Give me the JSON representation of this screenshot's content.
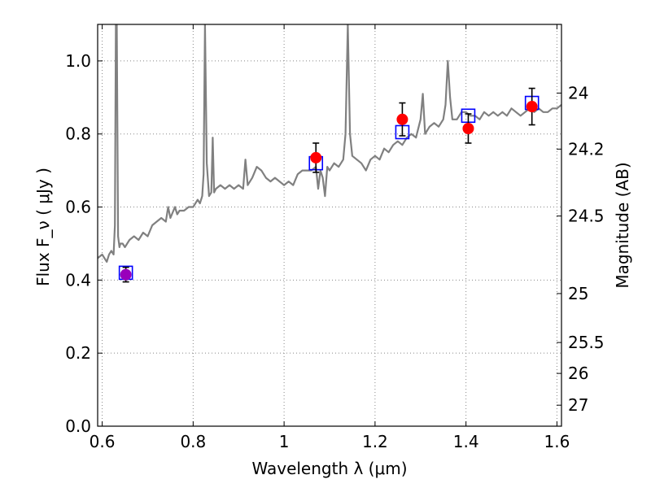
{
  "chart_data": {
    "type": "scatter",
    "title": "",
    "xlabel": "Wavelength  λ (μm)",
    "ylabel": "Flux  F_ν  ( μJy )",
    "ylabel_right": "Magnitude (AB)",
    "xlim": [
      0.59,
      1.61
    ],
    "ylim": [
      0.0,
      1.1
    ],
    "grid": true,
    "x_ticks": [
      0.6,
      0.8,
      1.0,
      1.2,
      1.4,
      1.6
    ],
    "x_tick_labels": [
      "0.6",
      "0.8",
      "1",
      "1.2",
      "1.4",
      "1.6"
    ],
    "y_ticks": [
      0.0,
      0.2,
      0.4,
      0.6,
      0.8,
      1.0
    ],
    "y_tick_labels": [
      "0.0",
      "0.2",
      "0.4",
      "0.6",
      "0.8",
      "1.0"
    ],
    "right_ticks": [
      {
        "label": "24",
        "flux": 0.912
      },
      {
        "label": "24.2",
        "flux": 0.7586
      },
      {
        "label": "24.5",
        "flux": 0.5754
      },
      {
        "label": "25",
        "flux": 0.3631
      },
      {
        "label": "25.5",
        "flux": 0.2291
      },
      {
        "label": "26",
        "flux": 0.1445
      },
      {
        "label": "27",
        "flux": 0.0575
      }
    ],
    "colors": {
      "model": "#808080",
      "observed": "#ff0000",
      "observed_first": "#9900bb",
      "model_photometry": "#0000ff",
      "errorbar": "#000000",
      "grid": "#888888"
    },
    "series": [
      {
        "kind": "line",
        "x": [
          0.59,
          0.6,
          0.61,
          0.615,
          0.62,
          0.625,
          0.628,
          0.63,
          0.632,
          0.635,
          0.638,
          0.64,
          0.645,
          0.65,
          0.66,
          0.67,
          0.68,
          0.69,
          0.7,
          0.71,
          0.72,
          0.73,
          0.74,
          0.745,
          0.75,
          0.76,
          0.765,
          0.77,
          0.78,
          0.79,
          0.8,
          0.81,
          0.815,
          0.82,
          0.823,
          0.826,
          0.83,
          0.835,
          0.84,
          0.843,
          0.846,
          0.85,
          0.86,
          0.87,
          0.88,
          0.89,
          0.9,
          0.91,
          0.915,
          0.92,
          0.93,
          0.94,
          0.95,
          0.96,
          0.97,
          0.98,
          0.99,
          1.0,
          1.01,
          1.02,
          1.03,
          1.04,
          1.05,
          1.06,
          1.07,
          1.075,
          1.08,
          1.085,
          1.09,
          1.095,
          1.1,
          1.11,
          1.12,
          1.13,
          1.135,
          1.14,
          1.145,
          1.15,
          1.16,
          1.17,
          1.18,
          1.19,
          1.2,
          1.21,
          1.22,
          1.23,
          1.24,
          1.25,
          1.26,
          1.27,
          1.28,
          1.29,
          1.3,
          1.305,
          1.31,
          1.32,
          1.33,
          1.34,
          1.35,
          1.355,
          1.36,
          1.365,
          1.37,
          1.38,
          1.39,
          1.4,
          1.41,
          1.42,
          1.43,
          1.44,
          1.45,
          1.46,
          1.47,
          1.48,
          1.49,
          1.5,
          1.51,
          1.52,
          1.53,
          1.54,
          1.55,
          1.56,
          1.57,
          1.58,
          1.59,
          1.6,
          1.61
        ],
        "y": [
          0.46,
          0.47,
          0.45,
          0.47,
          0.48,
          0.47,
          0.55,
          1.1,
          1.1,
          0.52,
          0.49,
          0.5,
          0.5,
          0.49,
          0.51,
          0.52,
          0.51,
          0.53,
          0.52,
          0.55,
          0.56,
          0.57,
          0.56,
          0.6,
          0.57,
          0.6,
          0.58,
          0.59,
          0.59,
          0.6,
          0.6,
          0.62,
          0.61,
          0.63,
          0.69,
          1.1,
          0.72,
          0.63,
          0.64,
          0.79,
          0.64,
          0.65,
          0.66,
          0.65,
          0.66,
          0.65,
          0.66,
          0.65,
          0.73,
          0.66,
          0.68,
          0.71,
          0.7,
          0.68,
          0.67,
          0.68,
          0.67,
          0.66,
          0.67,
          0.66,
          0.69,
          0.7,
          0.7,
          0.7,
          0.71,
          0.65,
          0.7,
          0.68,
          0.63,
          0.71,
          0.7,
          0.72,
          0.71,
          0.73,
          0.8,
          1.1,
          0.8,
          0.74,
          0.73,
          0.72,
          0.7,
          0.73,
          0.74,
          0.73,
          0.76,
          0.75,
          0.77,
          0.78,
          0.77,
          0.79,
          0.8,
          0.79,
          0.84,
          0.91,
          0.8,
          0.82,
          0.83,
          0.82,
          0.84,
          0.88,
          1.0,
          0.9,
          0.84,
          0.84,
          0.86,
          0.86,
          0.85,
          0.85,
          0.84,
          0.86,
          0.85,
          0.86,
          0.85,
          0.86,
          0.85,
          0.87,
          0.86,
          0.85,
          0.86,
          0.87,
          0.86,
          0.87,
          0.86,
          0.86,
          0.87,
          0.87,
          0.88
        ]
      },
      {
        "kind": "errorbar",
        "x": [
          0.652,
          1.07,
          1.26,
          1.405,
          1.545
        ],
        "y": [
          0.415,
          0.735,
          0.84,
          0.815,
          0.875
        ],
        "yerr": [
          0.02,
          0.04,
          0.045,
          0.04,
          0.05
        ]
      },
      {
        "kind": "squares",
        "x": [
          0.652,
          1.07,
          1.26,
          1.405,
          1.545
        ],
        "y": [
          0.42,
          0.72,
          0.805,
          0.85,
          0.885
        ]
      }
    ]
  }
}
